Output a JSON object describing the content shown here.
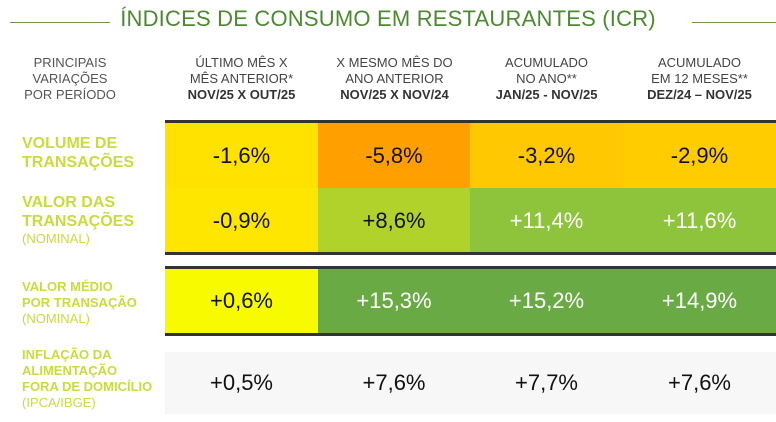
{
  "title": "ÍNDICES DE CONSUMO EM RESTAURANTES (ICR)",
  "row_header": [
    "PRINCIPAIS",
    "VARIAÇÕES",
    "POR PERÍODO"
  ],
  "columns": [
    {
      "l1": "ÚLTIMO MÊS X",
      "l2": "MÊS ANTERIOR*",
      "l3": "NOV/25 X OUT/25"
    },
    {
      "l1": "X MESMO MÊS DO",
      "l2": "ANO ANTERIOR",
      "l3": "NOV/25 X NOV/24"
    },
    {
      "l1": "ACUMULADO",
      "l2": "NO ANO**",
      "l3": "JAN/25 - NOV/25"
    },
    {
      "l1": "ACUMULADO",
      "l2": "EM 12 MESES**",
      "l3": "DEZ/24 – NOV/25"
    }
  ],
  "rows": [
    {
      "l1": "VOLUME DE",
      "l2": "TRANSAÇÕES",
      "sub": "",
      "values": [
        "-1,6%",
        "-5,8%",
        "-3,2%",
        "-2,9%"
      ],
      "colors": [
        "#ffe200",
        "#ff9f00",
        "#ffc800",
        "#ffcc00"
      ]
    },
    {
      "l1": "VALOR DAS",
      "l2": "TRANSAÇÕES",
      "sub": "(NOMINAL)",
      "values": [
        "-0,9%",
        "+8,6%",
        "+11,4%",
        "+11,6%"
      ],
      "colors": [
        "#ffe600",
        "#b1d22a",
        "#8dc43c",
        "#8dc43c"
      ]
    },
    {
      "l1": "VALOR MÉDIO",
      "l2": "POR TRANSAÇÃO",
      "sub": "(NOMINAL)",
      "values": [
        "+0,6%",
        "+15,3%",
        "+15,2%",
        "+14,9%"
      ],
      "colors": [
        "#f8fb00",
        "#6aaa45",
        "#6aaa45",
        "#6aaa45"
      ]
    },
    {
      "l1": "INFLAÇÃO DA",
      "l2": "ALIMENTAÇÃO",
      "l3": "FORA DE DOMICÍLIO",
      "sub": "(IPCA/IBGE)",
      "values": [
        "+0,5%",
        "+7,6%",
        "+7,7%",
        "+7,6%"
      ],
      "colors": [
        "#f7f7f7",
        "#f7f7f7",
        "#f7f7f7",
        "#f7f7f7"
      ]
    }
  ]
}
